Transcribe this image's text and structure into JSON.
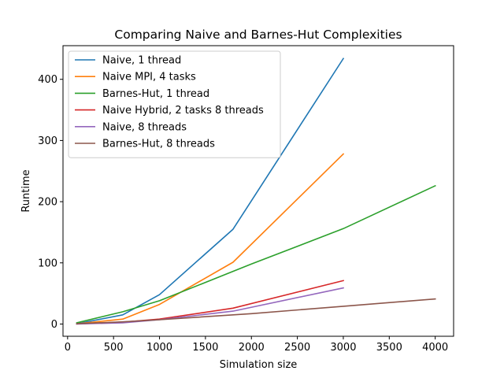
{
  "chart_data": {
    "type": "line",
    "title": "Comparing Naive and Barnes-Hut Complexities",
    "xlabel": "Simulation size",
    "ylabel": "Runtime",
    "xlim": [
      -50,
      4200
    ],
    "ylim": [
      -20,
      455
    ],
    "xticks": [
      0,
      500,
      1000,
      1500,
      2000,
      2500,
      3000,
      3500,
      4000
    ],
    "yticks": [
      0,
      100,
      200,
      300,
      400
    ],
    "grid": false,
    "legend_position": "top-left",
    "series": [
      {
        "name": "Naive, 1 thread",
        "color": "#1f77b4",
        "x": [
          100,
          600,
          1000,
          1800,
          3000
        ],
        "y": [
          0.5,
          15,
          48,
          155,
          434
        ]
      },
      {
        "name": "Naive MPI, 4 tasks",
        "color": "#ff7f0e",
        "x": [
          100,
          600,
          1000,
          1800,
          3000
        ],
        "y": [
          0.3,
          8,
          32,
          101,
          278
        ]
      },
      {
        "name": "Barnes-Hut, 1 thread",
        "color": "#2ca02c",
        "x": [
          100,
          600,
          1000,
          2000,
          3000,
          4000
        ],
        "y": [
          2,
          20,
          38,
          98,
          156,
          226
        ]
      },
      {
        "name": "Naive Hybrid, 2 tasks 8 threads",
        "color": "#d62728",
        "x": [
          100,
          600,
          1000,
          1800,
          3000
        ],
        "y": [
          0.2,
          3,
          8,
          26,
          71
        ]
      },
      {
        "name": "Naive, 8 threads",
        "color": "#9467bd",
        "x": [
          100,
          600,
          1000,
          1800,
          3000
        ],
        "y": [
          0.1,
          2,
          7,
          21,
          59
        ]
      },
      {
        "name": "Barnes-Hut, 8 threads",
        "color": "#8c564b",
        "x": [
          100,
          600,
          1000,
          2000,
          3000,
          4000
        ],
        "y": [
          0.5,
          3.5,
          7,
          17,
          29,
          41
        ]
      }
    ]
  }
}
